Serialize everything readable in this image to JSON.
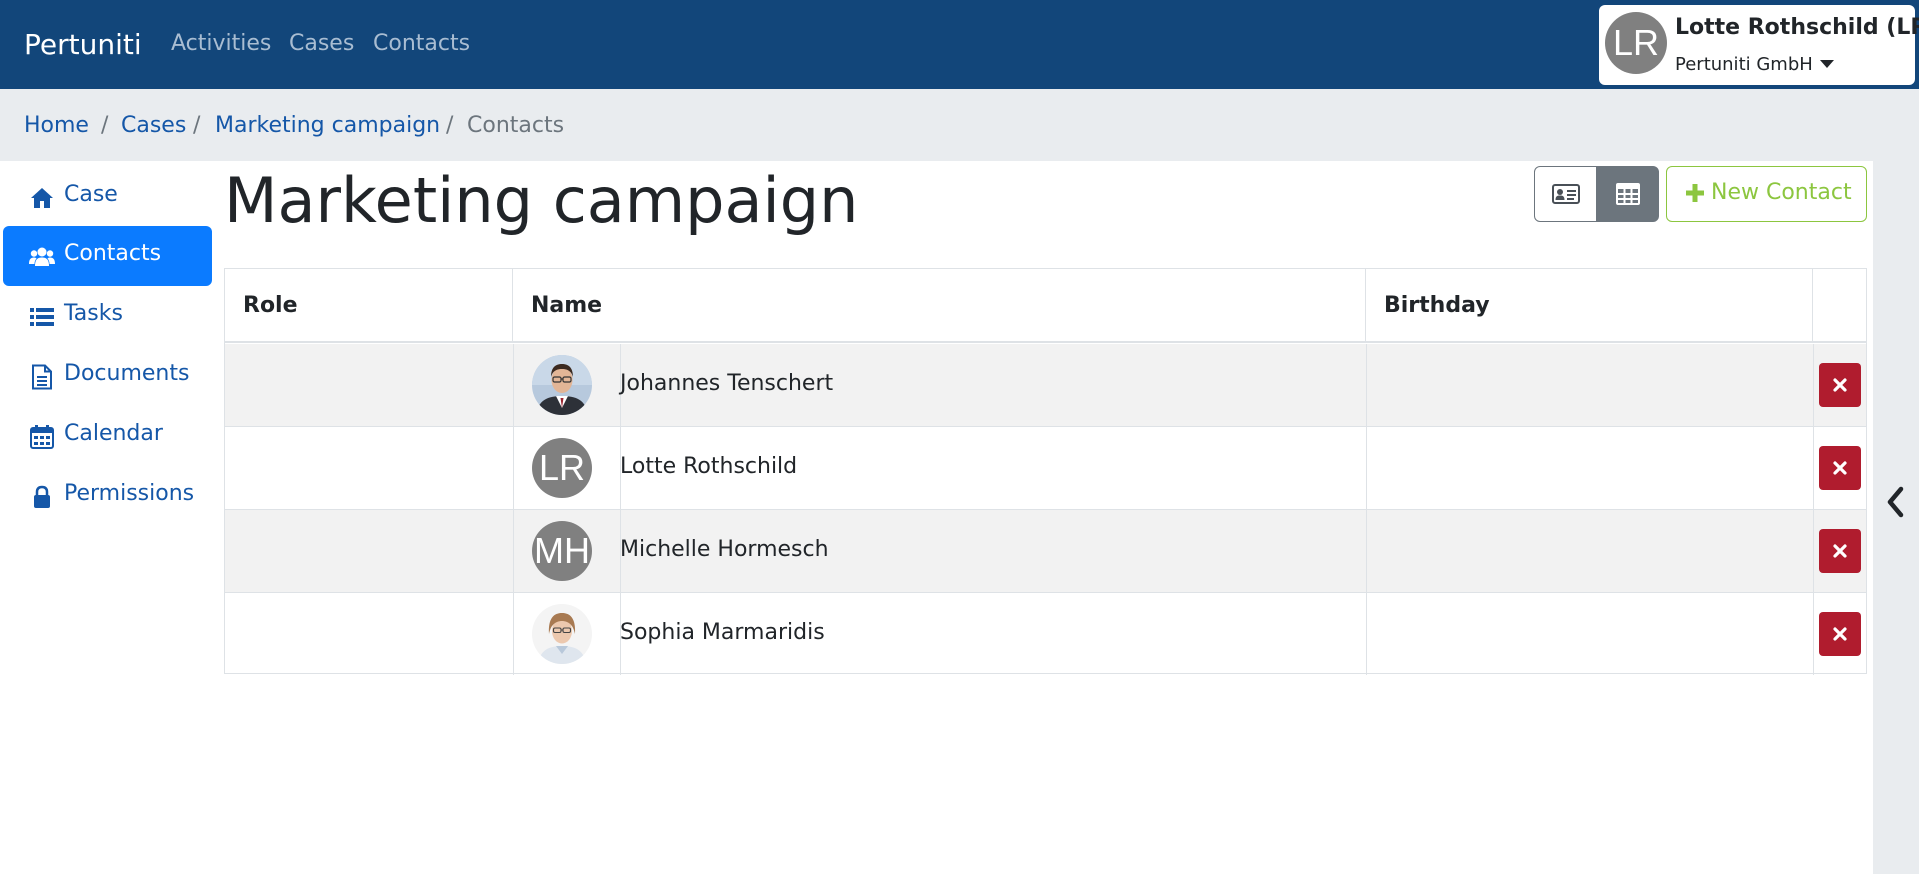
{
  "app": {
    "brand": "Pertuniti"
  },
  "nav": {
    "items": [
      {
        "label": "Activities"
      },
      {
        "label": "Cases"
      },
      {
        "label": "Contacts"
      }
    ]
  },
  "user": {
    "initials": "LR",
    "name": "Lotte Rothschild (LR)",
    "organization": "Pertuniti GmbH"
  },
  "breadcrumb": {
    "items": [
      {
        "label": "Home"
      },
      {
        "label": "Cases"
      },
      {
        "label": "Marketing campaign"
      },
      {
        "label": "Contacts"
      }
    ],
    "separator": "/"
  },
  "sidebar": {
    "items": [
      {
        "label": "Case",
        "icon": "home-icon"
      },
      {
        "label": "Contacts",
        "icon": "users-icon",
        "active": true
      },
      {
        "label": "Tasks",
        "icon": "list-icon"
      },
      {
        "label": "Documents",
        "icon": "document-icon"
      },
      {
        "label": "Calendar",
        "icon": "calendar-icon"
      },
      {
        "label": "Permissions",
        "icon": "lock-icon"
      }
    ]
  },
  "page": {
    "title": "Marketing campaign",
    "new_contact_label": "New Contact"
  },
  "table": {
    "headers": [
      "Role",
      "Name",
      "Birthday",
      ""
    ],
    "rows": [
      {
        "role": "",
        "name": "Johannes Tenschert",
        "avatar": "photo",
        "birthday": ""
      },
      {
        "role": "",
        "name": "Lotte Rothschild",
        "avatar": "LR",
        "birthday": ""
      },
      {
        "role": "",
        "name": "Michelle Hormesch",
        "avatar": "MH",
        "birthday": ""
      },
      {
        "role": "",
        "name": "Sophia Marmaridis",
        "avatar": "photo",
        "birthday": ""
      }
    ]
  },
  "colors": {
    "navbar": "#12467a",
    "link": "#1557a8",
    "active": "#0b7bff",
    "success": "#8cc63f",
    "danger": "#b01c2e",
    "secondary": "#6c757d"
  }
}
